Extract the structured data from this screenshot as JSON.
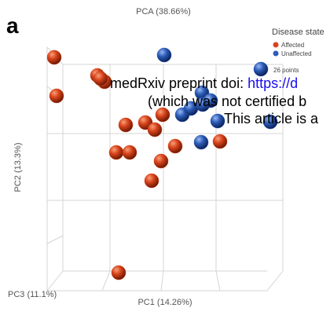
{
  "panel_label": "a",
  "chart_data": {
    "type": "scatter3d",
    "title": "PCA (38.66%)",
    "x_label": "PC1 (14.26%)",
    "y_label": "PC2 (13.3%)",
    "z_label": "PC3 (11.1%)",
    "legend_title": "Disease state",
    "point_count": "26 points",
    "legend": "top-right",
    "xlim": [
      0,
      300
    ],
    "ylim": [
      0,
      280
    ],
    "series": [
      {
        "name": "Affected",
        "color": "#d9431b",
        "x": [
          9,
          12,
          64,
          73,
          100,
          125,
          137,
          147,
          88,
          105,
          163,
          145,
          133,
          220,
          91,
          68
        ],
        "values": [
          277,
          228,
          254,
          246,
          191,
          194,
          185,
          204,
          156,
          156,
          164,
          145,
          120,
          170,
          3,
          250
        ]
      },
      {
        "name": "Unaffected",
        "color": "#2c5cb8",
        "x": [
          149,
          272,
          197,
          172,
          183,
          198,
          217,
          196,
          284,
          208
        ],
        "values": [
          280,
          262,
          232,
          204,
          212,
          217,
          196,
          169,
          195,
          222
        ]
      }
    ]
  },
  "watermark": {
    "line1": "medRxiv preprint doi: ",
    "link": "https://d",
    "line2": "(which was not certified b",
    "line3": "This article is a"
  }
}
